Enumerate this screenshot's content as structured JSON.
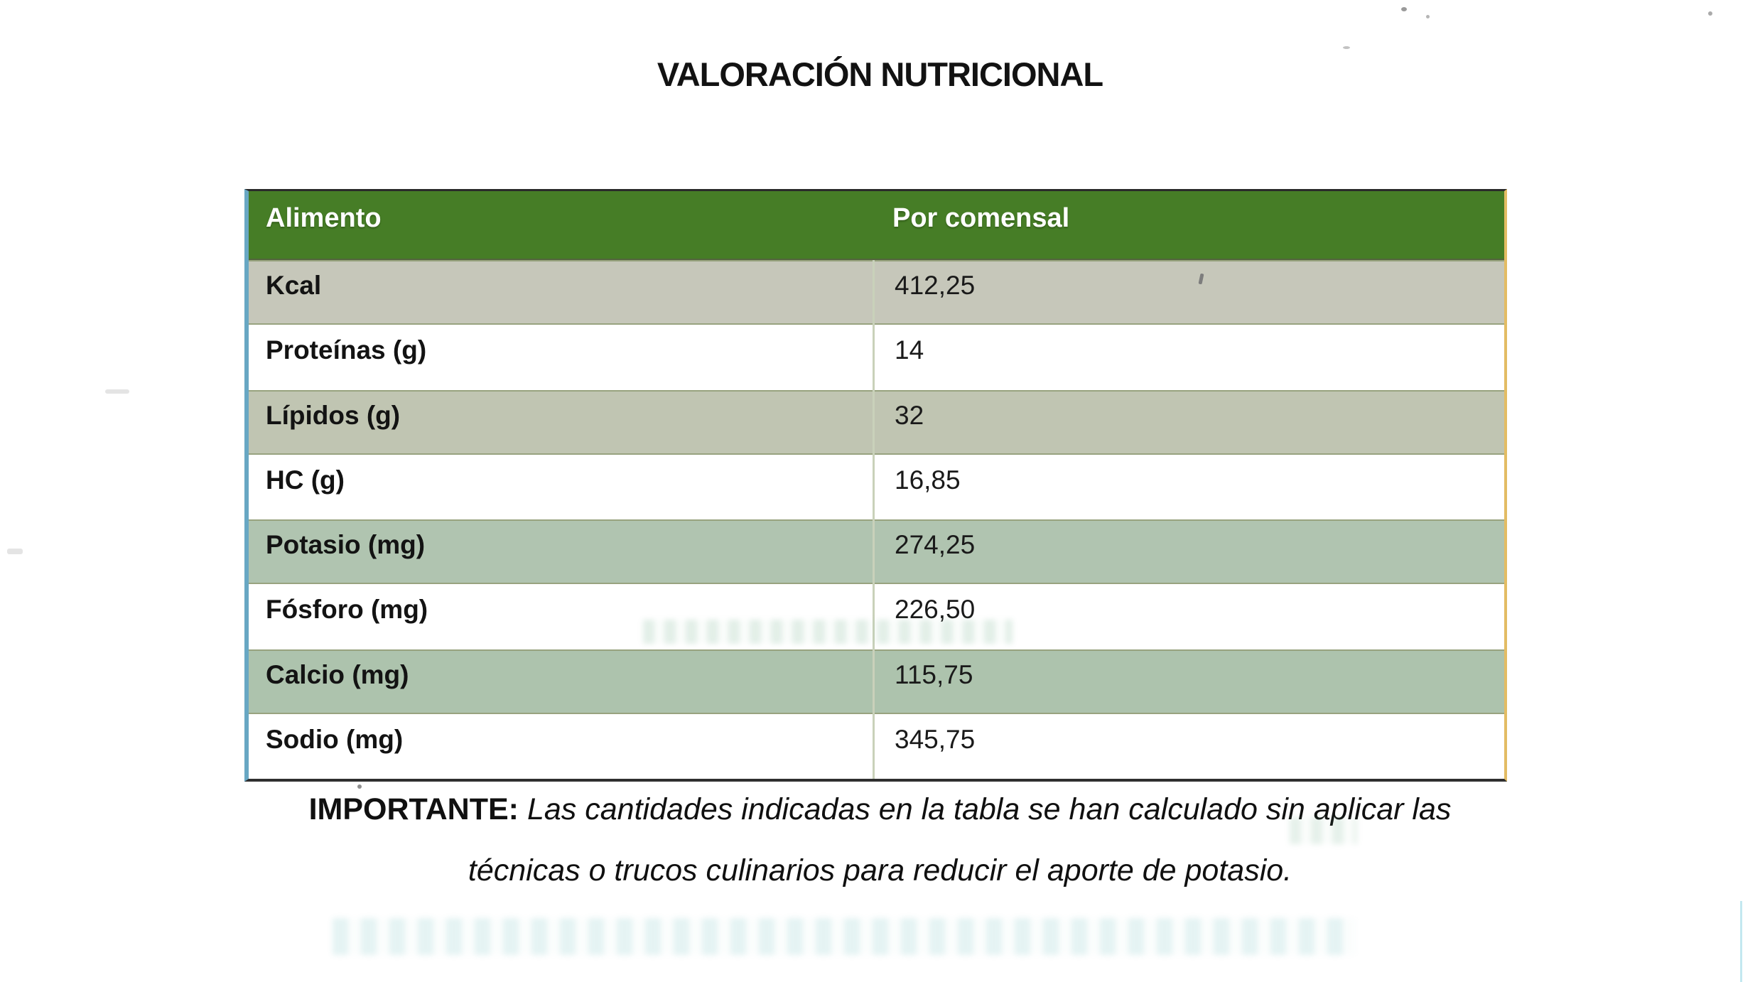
{
  "page": {
    "title": "VALORACIÓN NUTRICIONAL"
  },
  "table": {
    "columns": [
      {
        "label": "Alimento"
      },
      {
        "label": "Por comensal"
      }
    ],
    "rows": [
      {
        "label": "Kcal",
        "value": "412,25",
        "tint": "beige1"
      },
      {
        "label": "Proteínas (g)",
        "value": "14",
        "tint": "white"
      },
      {
        "label": "Lípidos (g)",
        "value": "32",
        "tint": "beige2"
      },
      {
        "label": "HC (g)",
        "value": "16,85",
        "tint": "white"
      },
      {
        "label": "Potasio (mg)",
        "value": "274,25",
        "tint": "green1"
      },
      {
        "label": "Fósforo (mg)",
        "value": "226,50",
        "tint": "white"
      },
      {
        "label": "Calcio (mg)",
        "value": "115,75",
        "tint": "green2"
      },
      {
        "label": "Sodio (mg)",
        "value": "345,75",
        "tint": "white"
      }
    ]
  },
  "note": {
    "lead": "IMPORTANTE:",
    "line1": "Las cantidades indicadas en la tabla se han calculado sin aplicar las",
    "line2": "técnicas o trucos culinarios para reducir el aporte de potasio."
  },
  "colors": {
    "header_green": "#467d26",
    "row_beige1": "#c6c7ba",
    "row_beige2": "#c0c5b2",
    "row_green1": "#b0c4b0",
    "row_green2": "#adc3ad",
    "row_white": "#ffffff",
    "header_text": "#ffffff",
    "body_text": "#151515",
    "border_left_blue": "#68a7c3",
    "border_right_yellow": "#e3bc64"
  }
}
